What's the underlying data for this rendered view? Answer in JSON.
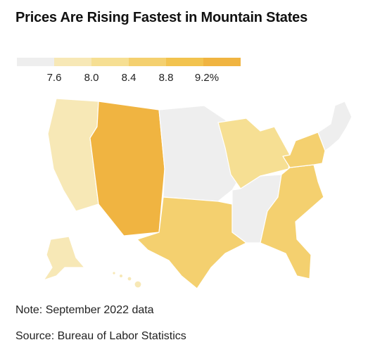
{
  "title": "Prices Are Rising Fastest in Mountain States",
  "legend": {
    "colors": [
      "#eeeeee",
      "#f7e8b6",
      "#f6df93",
      "#f4d06f",
      "#f2c34f",
      "#f0b441"
    ],
    "ticks": [
      "7.6",
      "8.0",
      "8.4",
      "8.8",
      "9.2%"
    ]
  },
  "regions": {
    "mountain": "#f0b441",
    "pacific": "#f7e8b6",
    "west_south_central": "#f4d06f",
    "south_atlantic": "#f4d06f",
    "middle_atlantic": "#f4d06f",
    "east_north_central": "#f6df93",
    "west_north_central": "#eeeeee",
    "new_england": "#eeeeee",
    "east_south_central": "#eeeeee"
  },
  "note": "Note: September 2022 data",
  "source": "Source: Bureau of Labor Statistics"
}
